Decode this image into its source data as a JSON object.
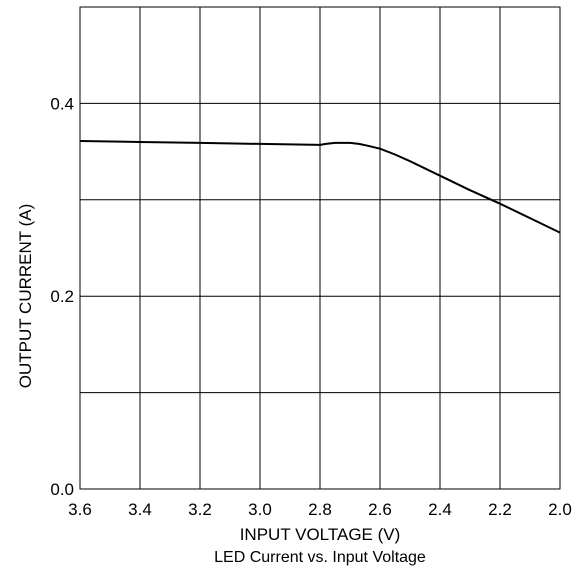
{
  "chart_data": {
    "type": "line",
    "title": "LED Current vs. Input Voltage",
    "xlabel": "INPUT VOLTAGE (V)",
    "ylabel": "OUTPUT CURRENT (A)",
    "x_reversed": true,
    "xlim": [
      3.6,
      2.0
    ],
    "ylim": [
      0.0,
      0.5
    ],
    "x_ticks": [
      "3.6",
      "3.4",
      "3.2",
      "3.0",
      "2.8",
      "2.6",
      "2.4",
      "2.2",
      "2.0"
    ],
    "y_ticks": [
      "0.0",
      "0.2",
      "0.4"
    ],
    "grid": true,
    "series": [
      {
        "color": "#000000",
        "x": [
          3.6,
          3.4,
          3.2,
          3.0,
          2.8,
          2.78,
          2.75,
          2.7,
          2.67,
          2.64,
          2.6,
          2.55,
          2.5,
          2.4,
          2.3,
          2.2,
          2.1,
          2.0
        ],
        "y": [
          0.361,
          0.36,
          0.359,
          0.358,
          0.357,
          0.358,
          0.359,
          0.359,
          0.358,
          0.356,
          0.353,
          0.347,
          0.34,
          0.325,
          0.31,
          0.296,
          0.281,
          0.266
        ]
      }
    ]
  }
}
